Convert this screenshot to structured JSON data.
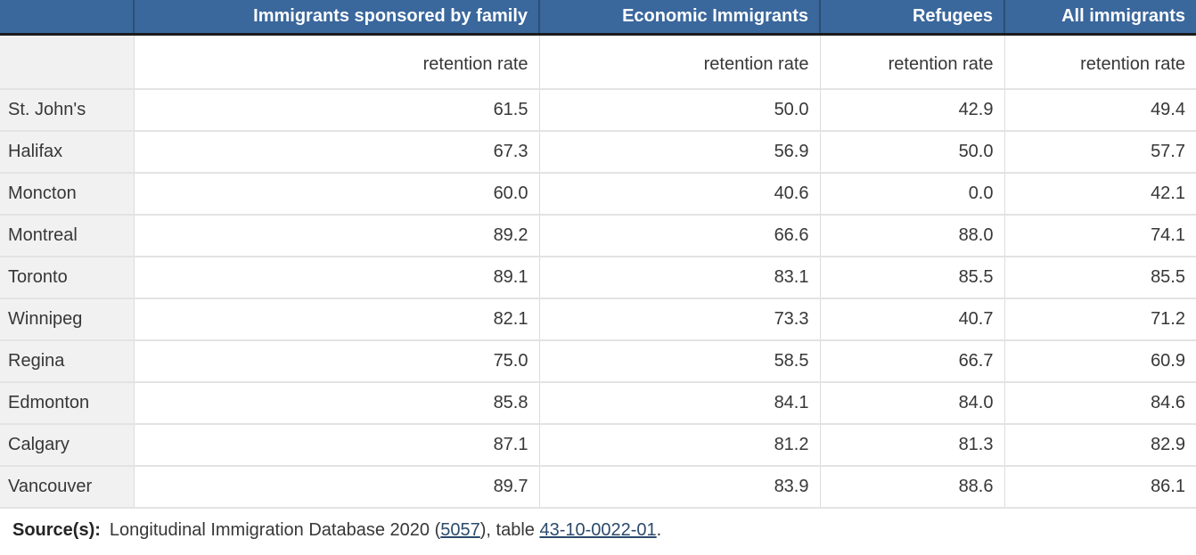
{
  "table": {
    "columns": [
      {
        "label": "Immigrants sponsored by family",
        "sub": "retention rate"
      },
      {
        "label": "Economic Immigrants",
        "sub": "retention rate"
      },
      {
        "label": "Refugees",
        "sub": "retention rate"
      },
      {
        "label": "All immigrants",
        "sub": "retention rate"
      }
    ],
    "rows": [
      {
        "city": "St. John's",
        "values": [
          "61.5",
          "50.0",
          "42.9",
          "49.4"
        ]
      },
      {
        "city": "Halifax",
        "values": [
          "67.3",
          "56.9",
          "50.0",
          "57.7"
        ]
      },
      {
        "city": "Moncton",
        "values": [
          "60.0",
          "40.6",
          "0.0",
          "42.1"
        ]
      },
      {
        "city": "Montreal",
        "values": [
          "89.2",
          "66.6",
          "88.0",
          "74.1"
        ]
      },
      {
        "city": "Toronto",
        "values": [
          "89.1",
          "83.1",
          "85.5",
          "85.5"
        ]
      },
      {
        "city": "Winnipeg",
        "values": [
          "82.1",
          "73.3",
          "40.7",
          "71.2"
        ]
      },
      {
        "city": "Regina",
        "values": [
          "75.0",
          "58.5",
          "66.7",
          "60.9"
        ]
      },
      {
        "city": "Edmonton",
        "values": [
          "85.8",
          "84.1",
          "84.0",
          "84.6"
        ]
      },
      {
        "city": "Calgary",
        "values": [
          "87.1",
          "81.2",
          "81.3",
          "82.9"
        ]
      },
      {
        "city": "Vancouver",
        "values": [
          "89.7",
          "83.9",
          "88.6",
          "86.1"
        ]
      }
    ]
  },
  "source": {
    "label": "Source(s):",
    "text_before": "Longitudinal Immigration Database 2020 (",
    "link_survey": "5057",
    "text_middle": "), table ",
    "link_table": "43-10-0022-01",
    "text_after": "."
  },
  "colors": {
    "header_bg": "#3a679c",
    "header_divider": "#2b5076",
    "header_dark_border": "#1c1c1c",
    "stub_bg": "#f1f1f1",
    "grid_line": "#dcdcdc",
    "row_line": "#e3e3e3",
    "text_color": "#373737",
    "link_color": "#2b4a6b"
  },
  "chart_data": {
    "type": "table",
    "title": "Retention rate by immigrant category and city",
    "unit": "retention rate",
    "categories": [
      "St. John's",
      "Halifax",
      "Moncton",
      "Montreal",
      "Toronto",
      "Winnipeg",
      "Regina",
      "Edmonton",
      "Calgary",
      "Vancouver"
    ],
    "series": [
      {
        "name": "Immigrants sponsored by family",
        "values": [
          61.5,
          67.3,
          60.0,
          89.2,
          89.1,
          82.1,
          75.0,
          85.8,
          87.1,
          89.7
        ]
      },
      {
        "name": "Economic Immigrants",
        "values": [
          50.0,
          56.9,
          40.6,
          66.6,
          83.1,
          73.3,
          58.5,
          84.1,
          81.2,
          83.9
        ]
      },
      {
        "name": "Refugees",
        "values": [
          42.9,
          50.0,
          0.0,
          88.0,
          85.5,
          40.7,
          66.7,
          84.0,
          81.3,
          88.6
        ]
      },
      {
        "name": "All immigrants",
        "values": [
          49.4,
          57.7,
          42.1,
          74.1,
          85.5,
          71.2,
          60.9,
          84.6,
          82.9,
          86.1
        ]
      }
    ]
  }
}
